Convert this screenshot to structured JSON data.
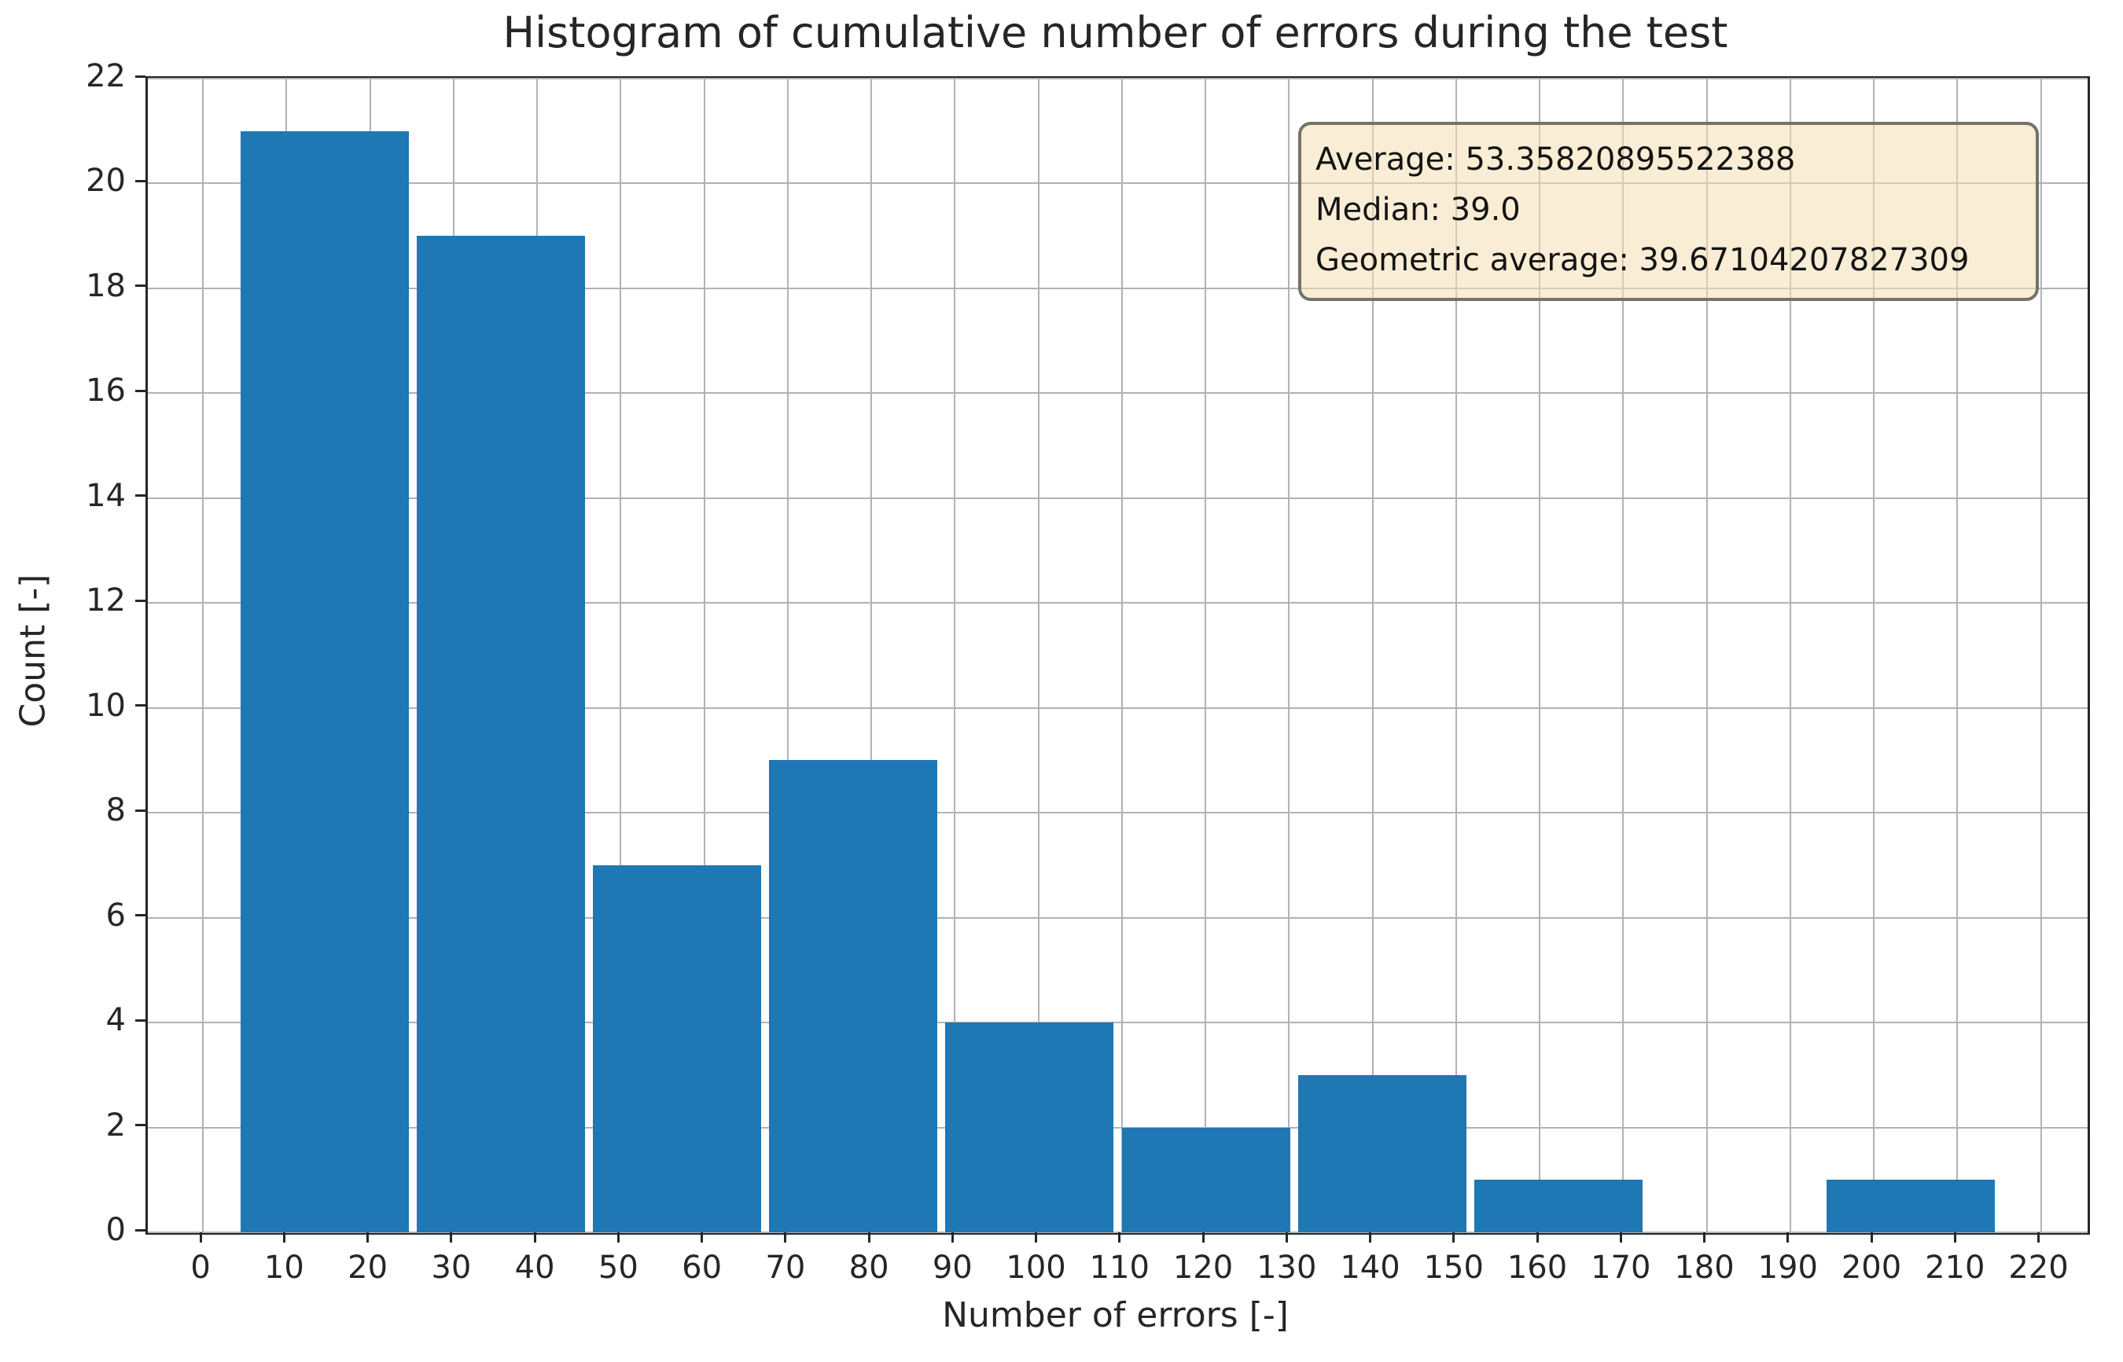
{
  "chart_data": {
    "type": "bar",
    "variant": "histogram",
    "title": "Histogram of cumulative number of errors during the test",
    "xlabel": "Number of errors [-]",
    "ylabel": "Count [-]",
    "bin_edges": [
      4.0,
      25.1,
      46.2,
      67.3,
      88.4,
      109.5,
      130.6,
      151.7,
      172.8,
      193.9,
      215.0
    ],
    "counts": [
      21,
      19,
      7,
      9,
      4,
      2,
      3,
      1,
      0,
      1
    ],
    "total_samples": 67,
    "xticks": [
      0,
      10,
      20,
      30,
      40,
      50,
      60,
      70,
      80,
      90,
      100,
      110,
      120,
      130,
      140,
      150,
      160,
      170,
      180,
      190,
      200,
      210,
      220
    ],
    "yticks": [
      0,
      2,
      4,
      6,
      8,
      10,
      12,
      14,
      16,
      18,
      20,
      22
    ],
    "xlim": [
      -6.6,
      225.6
    ],
    "ylim": [
      0,
      22
    ],
    "grid": true,
    "legend": false,
    "colors": {
      "bar": "#1f77b4",
      "grid": "#b2b2b2",
      "spine": "#262626",
      "text": "#262626",
      "stats_bg": "rgba(245, 222, 179, 0.55)",
      "stats_border": "#73736b"
    },
    "stats_box": {
      "average_line": "Average: 53.35820895522388",
      "median_line": "Median: 39.0",
      "geometric_line": "Geometric average: 39.67104207827309"
    }
  }
}
